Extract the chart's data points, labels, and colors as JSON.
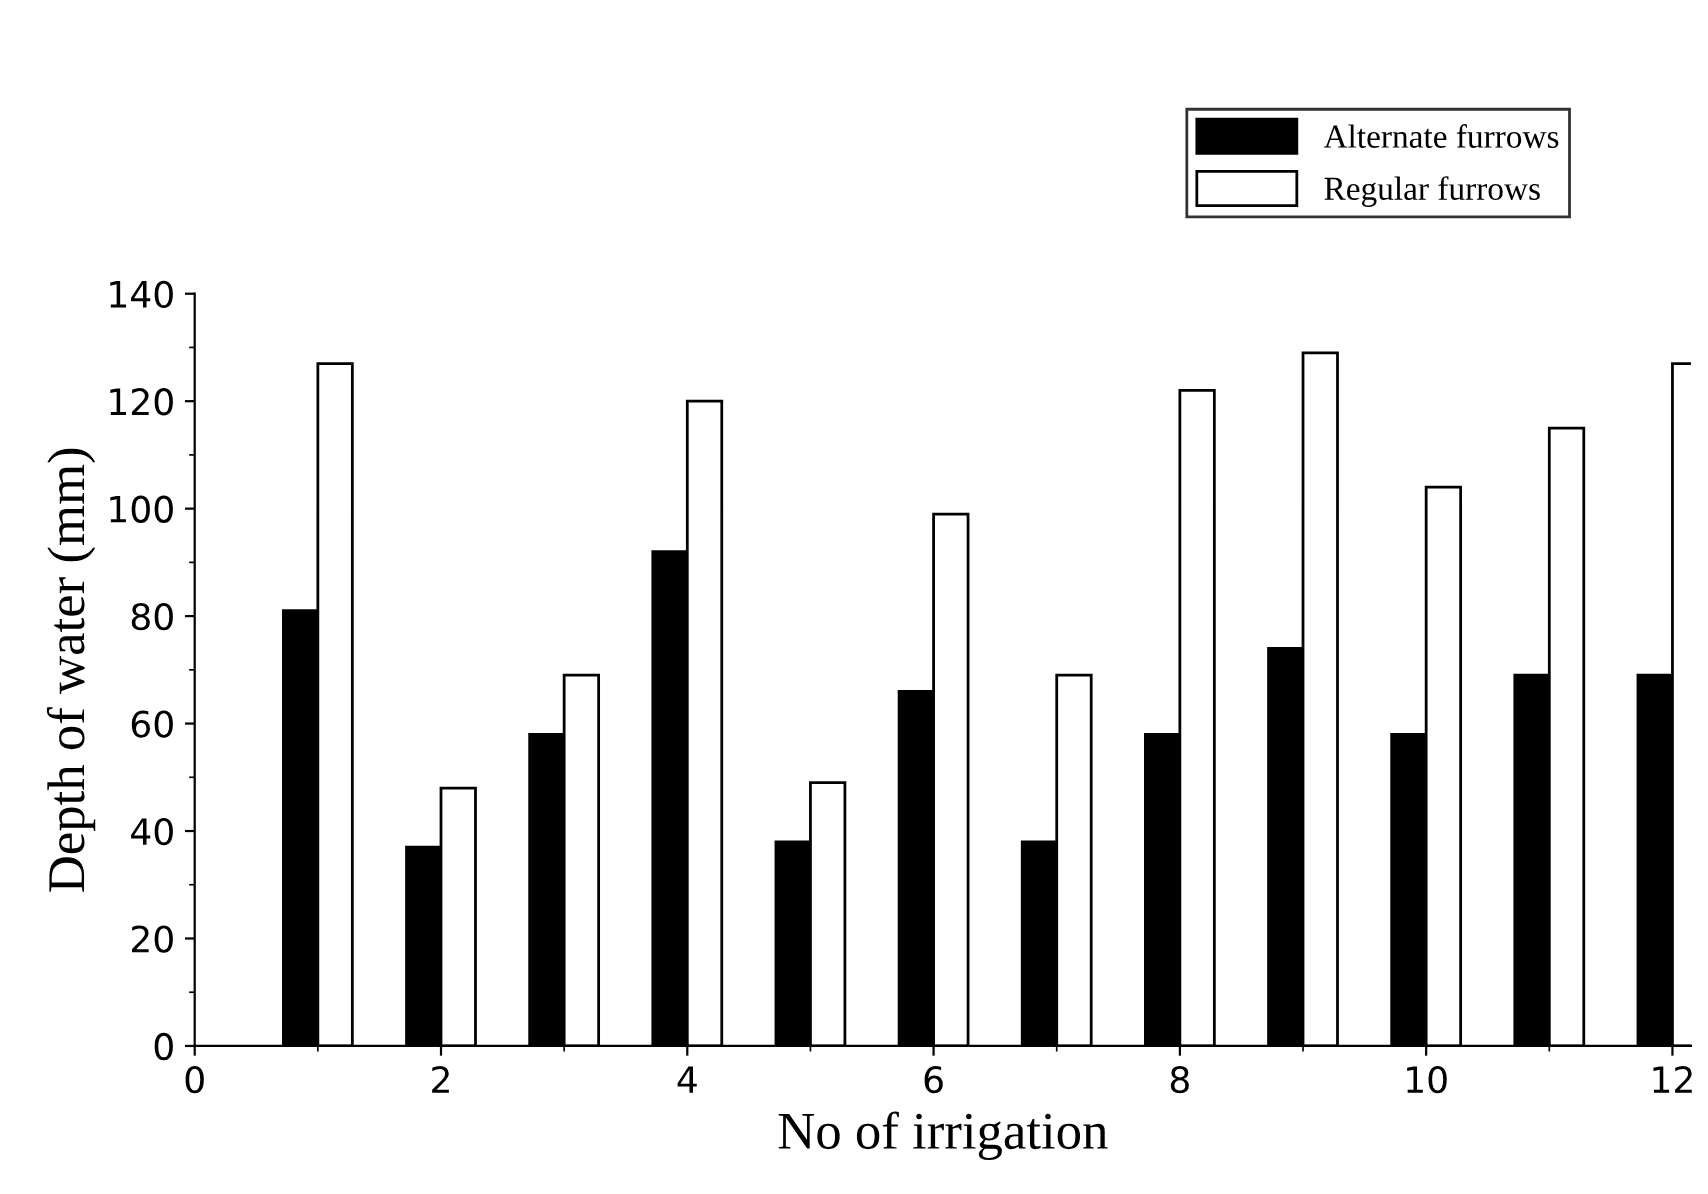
{
  "chart_data": {
    "type": "bar",
    "xlabel": "No of irrigation",
    "ylabel": "Depth of water (mm)",
    "x": [
      1,
      2,
      3,
      4,
      5,
      6,
      7,
      8,
      9,
      10,
      11,
      12
    ],
    "series": [
      {
        "name": "Alternate furrows",
        "color": "#000000",
        "values": [
          81,
          37,
          58,
          92,
          38,
          66,
          38,
          58,
          74,
          58,
          69,
          69
        ]
      },
      {
        "name": "Regular furrows",
        "color": "#ffffff",
        "values": [
          127,
          48,
          69,
          120,
          49,
          99,
          69,
          122,
          129,
          104,
          115,
          127
        ]
      }
    ],
    "xlim": [
      0,
      12.15
    ],
    "xticks": [
      0,
      2,
      4,
      6,
      8,
      10,
      12
    ],
    "ylim": [
      0,
      140
    ],
    "yticks": [
      0,
      20,
      40,
      60,
      80,
      100,
      120,
      140
    ],
    "grid": false,
    "legend": "top right"
  }
}
